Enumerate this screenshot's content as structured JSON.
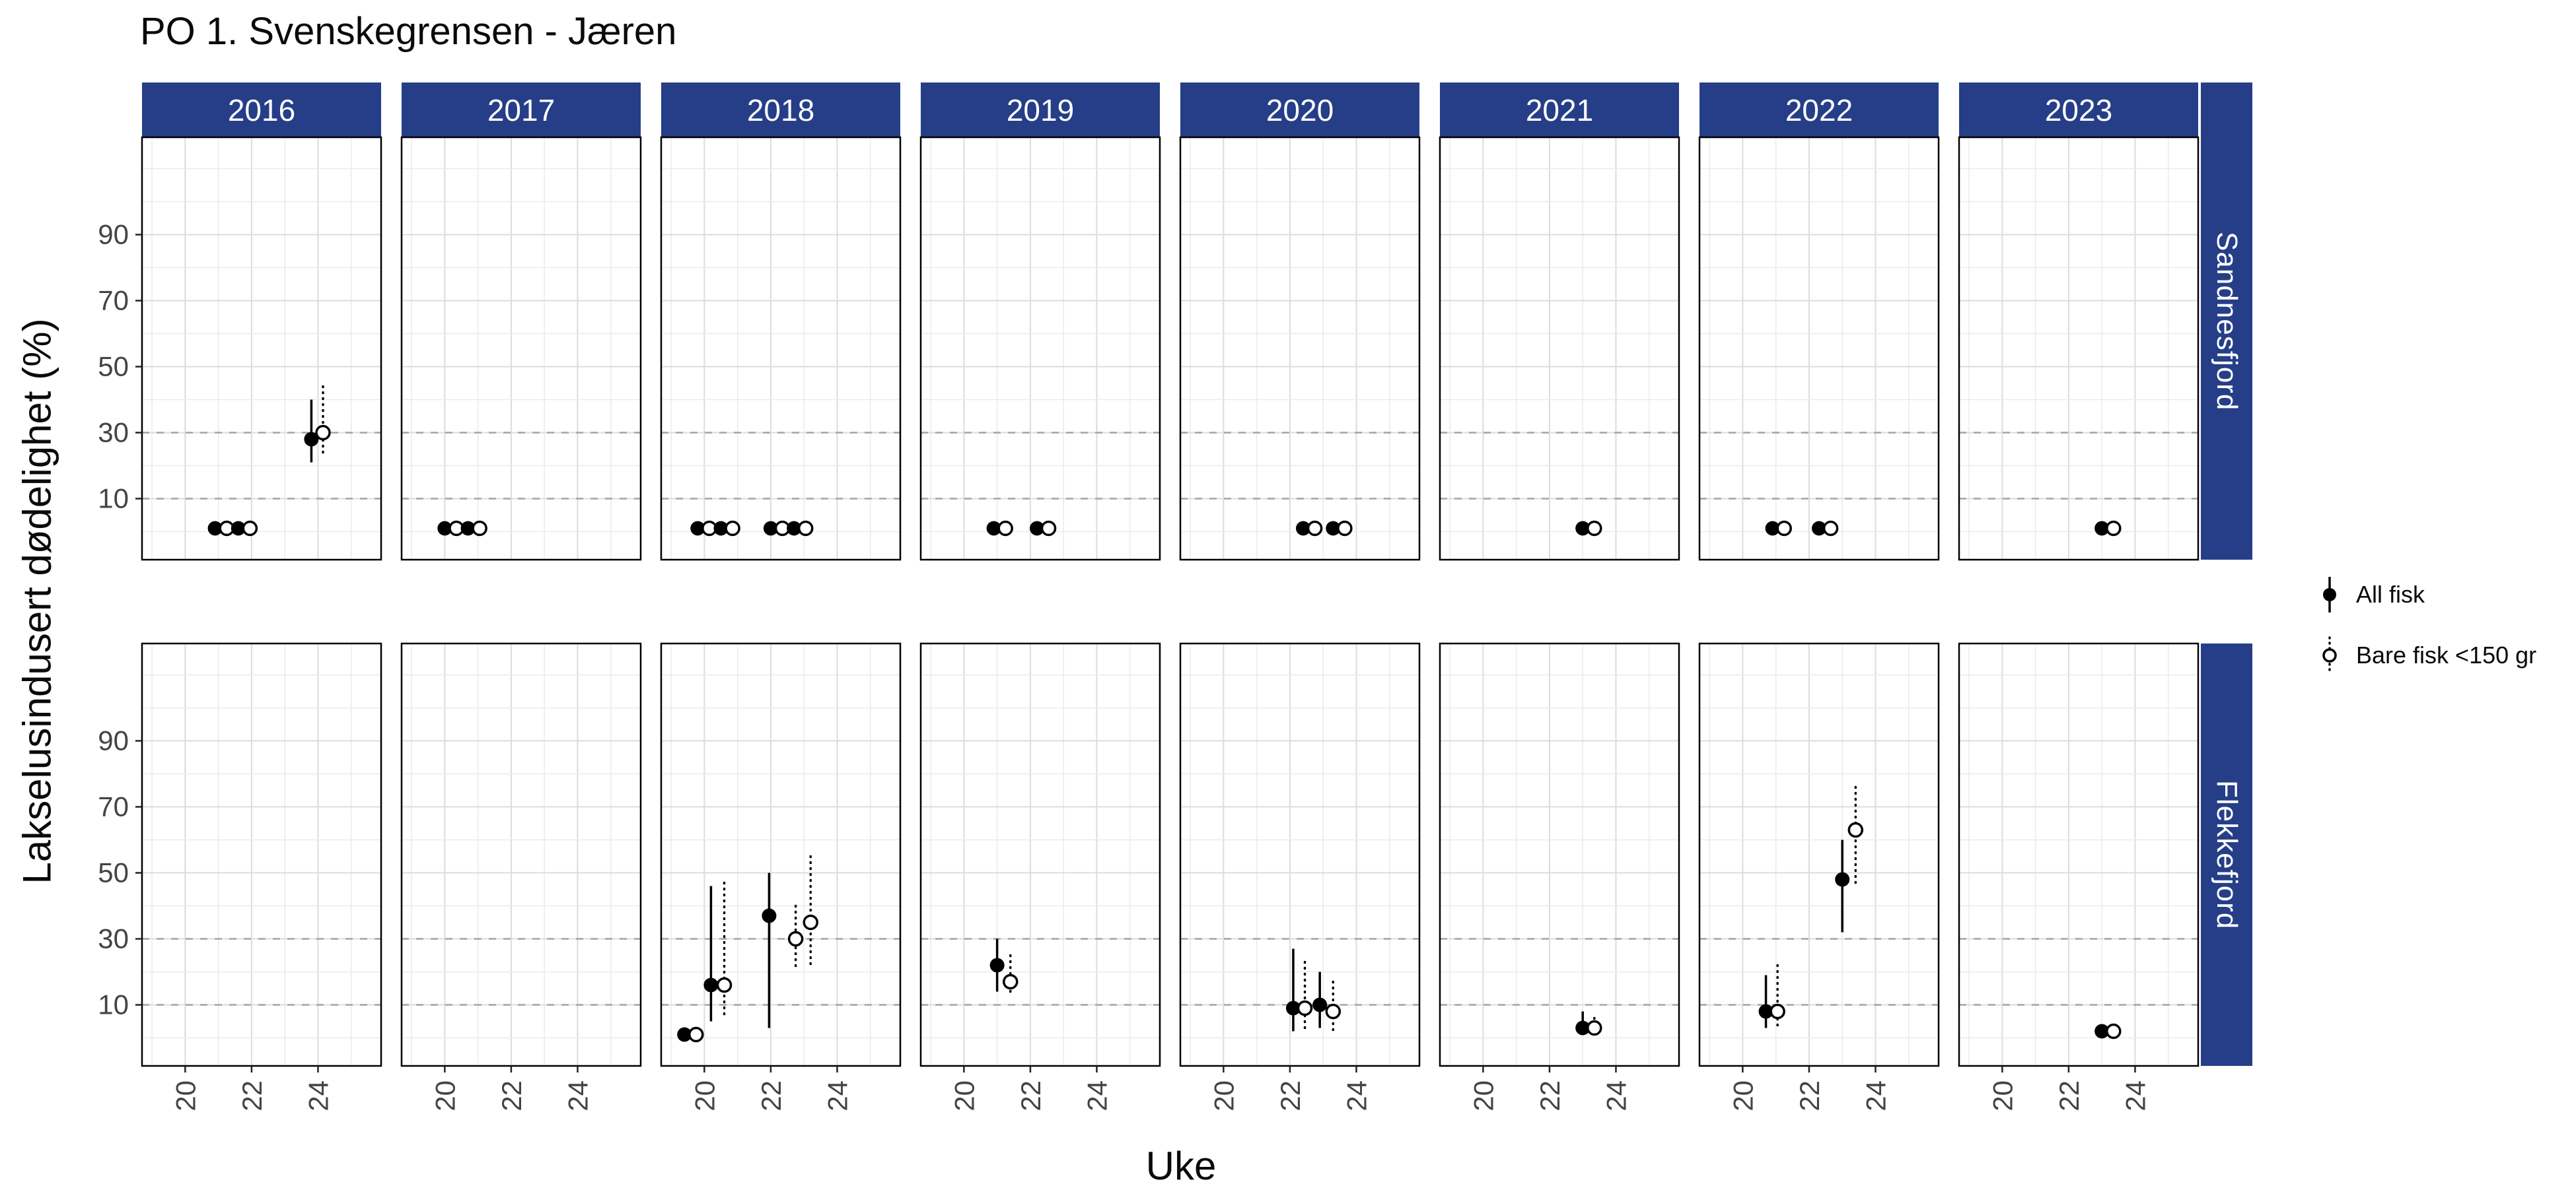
{
  "title": "PO 1. Svenskegrensen - Jæren",
  "colors": {
    "strip_bg": "#253e87",
    "strip_text": "#ffffff",
    "grid_minor": "#ebebeb",
    "grid_major": "#dcdcdc",
    "dashed_line": "#a3a3a3",
    "panel_border": "#000000",
    "point": "#000000",
    "tick_text": "#444444"
  },
  "chart_data": {
    "type": "scatter",
    "title": "PO 1. Svenskegrensen - Jæren",
    "xlabel": "Uke",
    "ylabel": "Lakselusindusert dødelighet (%)",
    "x_ticks": [
      20,
      22,
      24
    ],
    "y_ticks": [
      10,
      30,
      50,
      70,
      90
    ],
    "x_minor": [
      19,
      20,
      21,
      22,
      23,
      24,
      25
    ],
    "y_grid_step": 10,
    "x_domain": [
      18.7,
      25.9
    ],
    "y_domain": [
      -8.5,
      119.5
    ],
    "dashed_reference_lines": [
      10,
      30
    ],
    "facet_cols": [
      "2016",
      "2017",
      "2018",
      "2019",
      "2020",
      "2021",
      "2022",
      "2023"
    ],
    "facet_rows": [
      "Sandnesfjord",
      "Flekkefjord"
    ],
    "series": [
      {
        "name": "All fisk",
        "key": "all",
        "marker": "filled",
        "line": "solid"
      },
      {
        "name": "Bare fisk <150 gr",
        "key": "small",
        "marker": "open",
        "line": "dotted"
      }
    ],
    "points": {
      "Sandnesfjord": {
        "2016": [
          {
            "w": 20.9,
            "v": 1,
            "s": "all"
          },
          {
            "w": 21.25,
            "v": 1,
            "s": "small"
          },
          {
            "w": 21.6,
            "v": 1,
            "s": "all"
          },
          {
            "w": 21.95,
            "v": 1,
            "s": "small"
          },
          {
            "w": 23.8,
            "v": 28,
            "lo": 21,
            "hi": 40,
            "s": "all"
          },
          {
            "w": 24.15,
            "v": 30,
            "lo": 24,
            "hi": 44,
            "s": "small"
          }
        ],
        "2017": [
          {
            "w": 20.0,
            "v": 1,
            "s": "all"
          },
          {
            "w": 20.35,
            "v": 1,
            "s": "small"
          },
          {
            "w": 20.7,
            "v": 1,
            "s": "all"
          },
          {
            "w": 21.05,
            "v": 1,
            "s": "small"
          }
        ],
        "2018": [
          {
            "w": 19.8,
            "v": 1,
            "s": "all"
          },
          {
            "w": 20.15,
            "v": 1,
            "s": "small"
          },
          {
            "w": 20.5,
            "v": 1,
            "s": "all"
          },
          {
            "w": 20.85,
            "v": 1,
            "s": "small"
          },
          {
            "w": 22.0,
            "v": 1,
            "s": "all"
          },
          {
            "w": 22.35,
            "v": 1,
            "s": "small"
          },
          {
            "w": 22.7,
            "v": 1,
            "s": "all"
          },
          {
            "w": 23.05,
            "v": 1,
            "s": "small"
          }
        ],
        "2019": [
          {
            "w": 20.9,
            "v": 1,
            "s": "all"
          },
          {
            "w": 21.25,
            "v": 1,
            "s": "small"
          },
          {
            "w": 22.2,
            "v": 1,
            "s": "all"
          },
          {
            "w": 22.55,
            "v": 1,
            "s": "small"
          }
        ],
        "2020": [
          {
            "w": 22.4,
            "v": 1,
            "s": "all"
          },
          {
            "w": 22.75,
            "v": 1,
            "s": "small"
          },
          {
            "w": 23.3,
            "v": 1,
            "s": "all"
          },
          {
            "w": 23.65,
            "v": 1,
            "s": "small"
          }
        ],
        "2021": [
          {
            "w": 23.0,
            "v": 1,
            "s": "all"
          },
          {
            "w": 23.35,
            "v": 1,
            "s": "small"
          }
        ],
        "2022": [
          {
            "w": 20.9,
            "v": 1,
            "s": "all"
          },
          {
            "w": 21.25,
            "v": 1,
            "s": "small"
          },
          {
            "w": 22.3,
            "v": 1,
            "s": "all"
          },
          {
            "w": 22.65,
            "v": 1,
            "s": "small"
          }
        ],
        "2023": [
          {
            "w": 23.0,
            "v": 1,
            "s": "all"
          },
          {
            "w": 23.35,
            "v": 1,
            "s": "small"
          }
        ]
      },
      "Flekkefjord": {
        "2016": [],
        "2017": [],
        "2018": [
          {
            "w": 19.4,
            "v": 1,
            "s": "all"
          },
          {
            "w": 19.75,
            "v": 1,
            "s": "small"
          },
          {
            "w": 20.2,
            "v": 16,
            "lo": 5,
            "hi": 46,
            "s": "all"
          },
          {
            "w": 20.6,
            "v": 16,
            "lo": 6,
            "hi": 47,
            "s": "small"
          },
          {
            "w": 21.95,
            "v": 37,
            "lo": 3,
            "hi": 50,
            "s": "all"
          },
          {
            "w": 22.75,
            "v": 30,
            "lo": 21,
            "hi": 40,
            "s": "small"
          },
          {
            "w": 23.2,
            "v": 35,
            "lo": 22,
            "hi": 55,
            "s": "small"
          }
        ],
        "2019": [
          {
            "w": 21.0,
            "v": 22,
            "lo": 14,
            "hi": 30,
            "s": "all"
          },
          {
            "w": 21.4,
            "v": 17,
            "lo": 13,
            "hi": 25,
            "s": "small"
          }
        ],
        "2020": [
          {
            "w": 22.1,
            "v": 9,
            "lo": 2,
            "hi": 27,
            "s": "all"
          },
          {
            "w": 22.45,
            "v": 9,
            "lo": 2,
            "hi": 23,
            "s": "small"
          },
          {
            "w": 22.9,
            "v": 10,
            "lo": 3,
            "hi": 20,
            "s": "all"
          },
          {
            "w": 23.3,
            "v": 8,
            "lo": 2,
            "hi": 17,
            "s": "small"
          }
        ],
        "2021": [
          {
            "w": 23.0,
            "v": 3,
            "lo": 1,
            "hi": 8,
            "s": "all"
          },
          {
            "w": 23.35,
            "v": 3,
            "lo": 1,
            "hi": 6,
            "s": "small"
          }
        ],
        "2022": [
          {
            "w": 20.7,
            "v": 8,
            "lo": 3,
            "hi": 19,
            "s": "all"
          },
          {
            "w": 21.05,
            "v": 8,
            "lo": 3,
            "hi": 22,
            "s": "small"
          },
          {
            "w": 23.0,
            "v": 48,
            "lo": 32,
            "hi": 60,
            "s": "all"
          },
          {
            "w": 23.4,
            "v": 63,
            "lo": 47,
            "hi": 76,
            "s": "small"
          }
        ],
        "2023": [
          {
            "w": 23.0,
            "v": 2,
            "s": "all"
          },
          {
            "w": 23.35,
            "v": 2,
            "s": "small"
          }
        ]
      }
    }
  }
}
